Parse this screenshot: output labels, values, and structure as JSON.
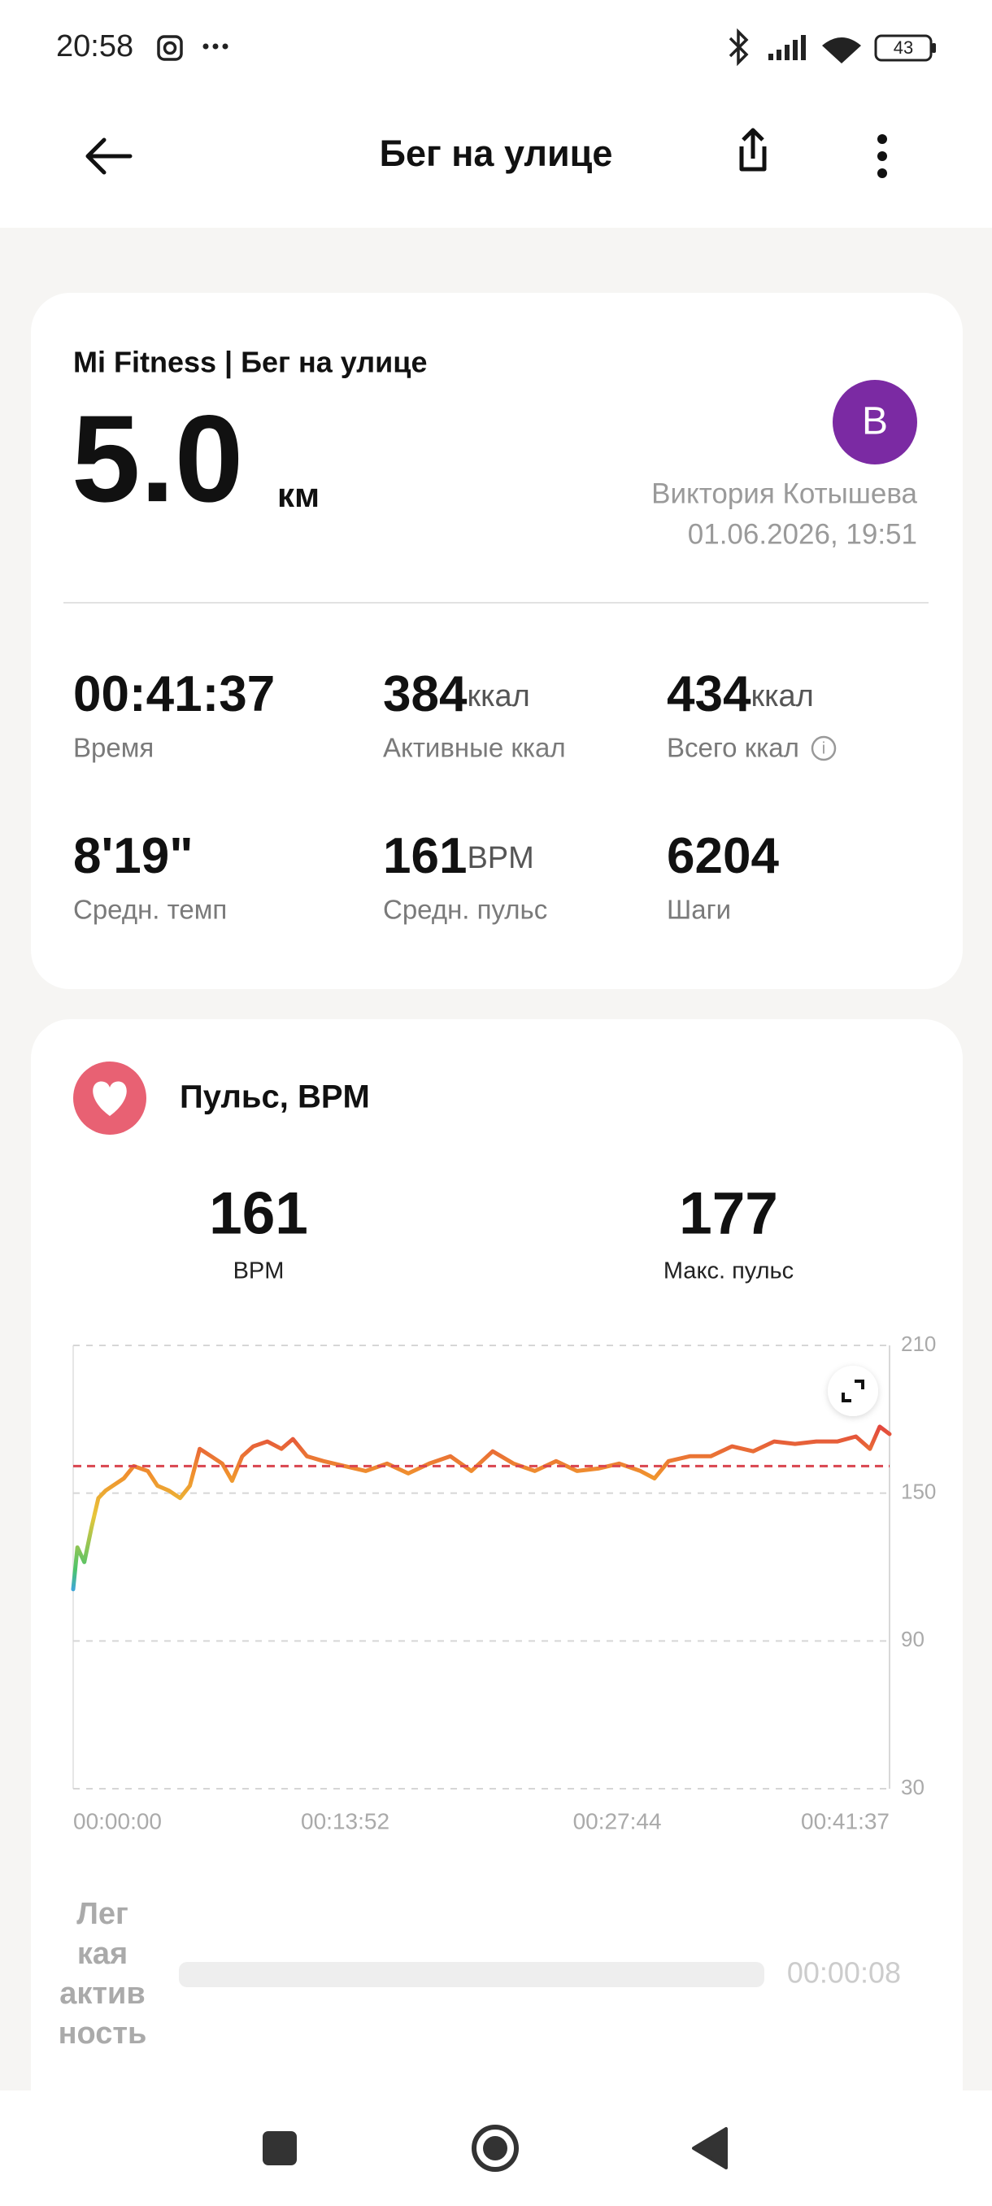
{
  "status_bar": {
    "time": "20:58",
    "battery": "43"
  },
  "toolbar": {
    "title": "Бег на улице"
  },
  "summary": {
    "source": "Mi Fitness | Бег на улице",
    "distance": "5.0",
    "distance_unit": "км",
    "avatar": "В",
    "user": "Виктория Котышева",
    "datetime": "01.06.2026, 19:51",
    "stats": [
      {
        "value": "00:41:37",
        "label": "Время"
      },
      {
        "value": "384",
        "unit": "ккал",
        "label": "Активные ккал"
      },
      {
        "value": "434",
        "unit": "ккал",
        "label": "Всего ккал"
      },
      {
        "value": "8'19\"",
        "label": "Средн. темп"
      },
      {
        "value": "161",
        "unit": "BPM",
        "label": "Средн. пульс"
      },
      {
        "value": "6204",
        "label": "Шаги"
      }
    ]
  },
  "heart_rate": {
    "title": "Пульс, BPM",
    "avg": {
      "value": 161,
      "label": "BPM"
    },
    "max": {
      "value": 177,
      "label": "Макс. пульс"
    }
  },
  "chart_data": {
    "type": "line",
    "x": [
      0,
      13,
      34,
      56,
      77,
      99,
      121,
      155,
      185,
      228,
      258,
      293,
      327,
      357,
      387,
      422,
      456,
      486,
      517,
      551,
      594,
      637,
      672,
      715,
      766,
      831,
      895,
      960,
      1025,
      1089,
      1154,
      1218,
      1283,
      1347,
      1412,
      1477,
      1541,
      1606,
      1670,
      1735,
      1778,
      1821,
      1886,
      1950,
      2015,
      2080,
      2144,
      2208,
      2273,
      2338,
      2394,
      2437,
      2467,
      2497
    ],
    "series": [
      {
        "color": "#f0922e",
        "values": [
          111,
          128,
          122,
          136,
          148,
          151,
          153,
          156,
          161,
          159,
          153,
          151,
          148,
          153,
          168,
          165,
          162,
          155,
          165,
          169,
          171,
          168,
          172,
          165,
          163,
          161,
          159,
          162,
          158,
          162,
          165,
          159,
          167,
          162,
          159,
          163,
          159,
          160,
          162,
          159,
          156,
          163,
          165,
          165,
          169,
          167,
          171,
          170,
          171,
          171,
          173,
          168,
          177,
          174
        ]
      }
    ],
    "xlim": [
      0,
      2497
    ],
    "xticks": [
      {
        "value": 0,
        "label": "00:00:00"
      },
      {
        "value": 832,
        "label": "00:13:52"
      },
      {
        "value": 1664,
        "label": "00:27:44"
      },
      {
        "value": 2497,
        "label": "00:41:37"
      }
    ],
    "ylim": [
      30,
      210
    ],
    "yticks": [
      30,
      90,
      150,
      210
    ],
    "grid": true
  },
  "activity": {
    "label_lines": [
      "Лег",
      "кая",
      "актив",
      "ность"
    ],
    "duration": "00:00:08"
  }
}
